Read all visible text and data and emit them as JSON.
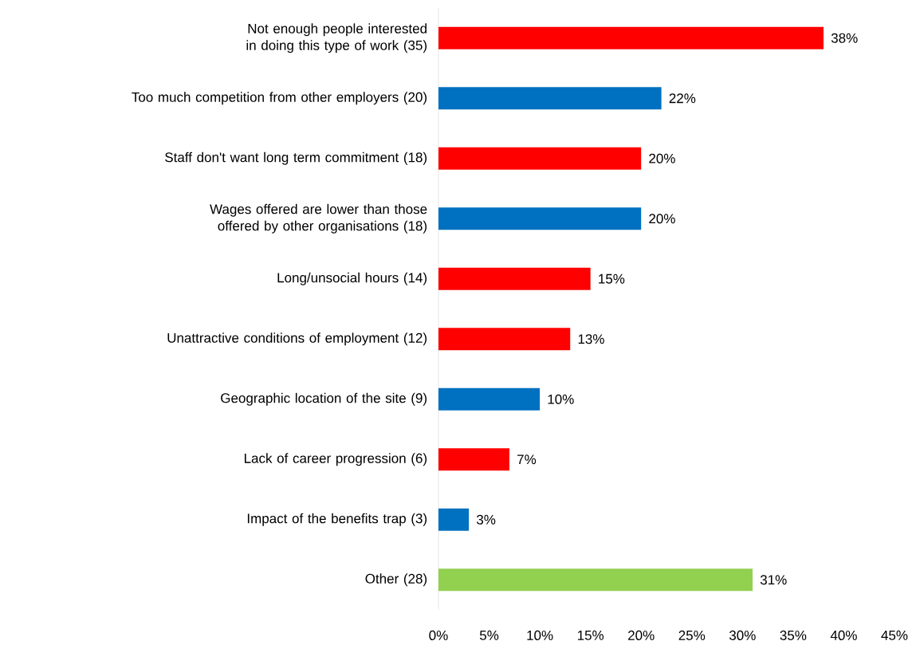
{
  "chart_data": {
    "type": "bar",
    "orientation": "horizontal",
    "categories": [
      "Not enough people interested in doing this type of work (35)",
      "Too much competition from other employers (20)",
      "Staff don't want long term commitment (18)",
      "Wages offered are lower than those offered by other organisations (18)",
      "Long/unsocial hours (14)",
      "Unattractive conditions of employment (12)",
      "Geographic location of the site (9)",
      "Lack of career progression (6)",
      "Impact of the benefits trap (3)",
      "Other (28)"
    ],
    "values": [
      38,
      22,
      20,
      20,
      15,
      13,
      10,
      7,
      3,
      31
    ],
    "value_labels": [
      "38%",
      "22%",
      "20%",
      "20%",
      "15%",
      "13%",
      "10%",
      "7%",
      "3%",
      "31%"
    ],
    "colors": [
      "#ff0000",
      "#0070c0",
      "#ff0000",
      "#0070c0",
      "#ff0000",
      "#ff0000",
      "#0070c0",
      "#ff0000",
      "#0070c0",
      "#92d050"
    ],
    "xlim": [
      0,
      45
    ],
    "xticks": [
      {
        "value": 0,
        "label": "0%"
      },
      {
        "value": 5,
        "label": "5%"
      },
      {
        "value": 10,
        "label": "10%"
      },
      {
        "value": 15,
        "label": "15%"
      },
      {
        "value": 20,
        "label": "20%"
      },
      {
        "value": 25,
        "label": "25%"
      },
      {
        "value": 30,
        "label": "30%"
      },
      {
        "value": 35,
        "label": "35%"
      },
      {
        "value": 40,
        "label": "40%"
      },
      {
        "value": 45,
        "label": "45%"
      }
    ],
    "grid": false
  }
}
